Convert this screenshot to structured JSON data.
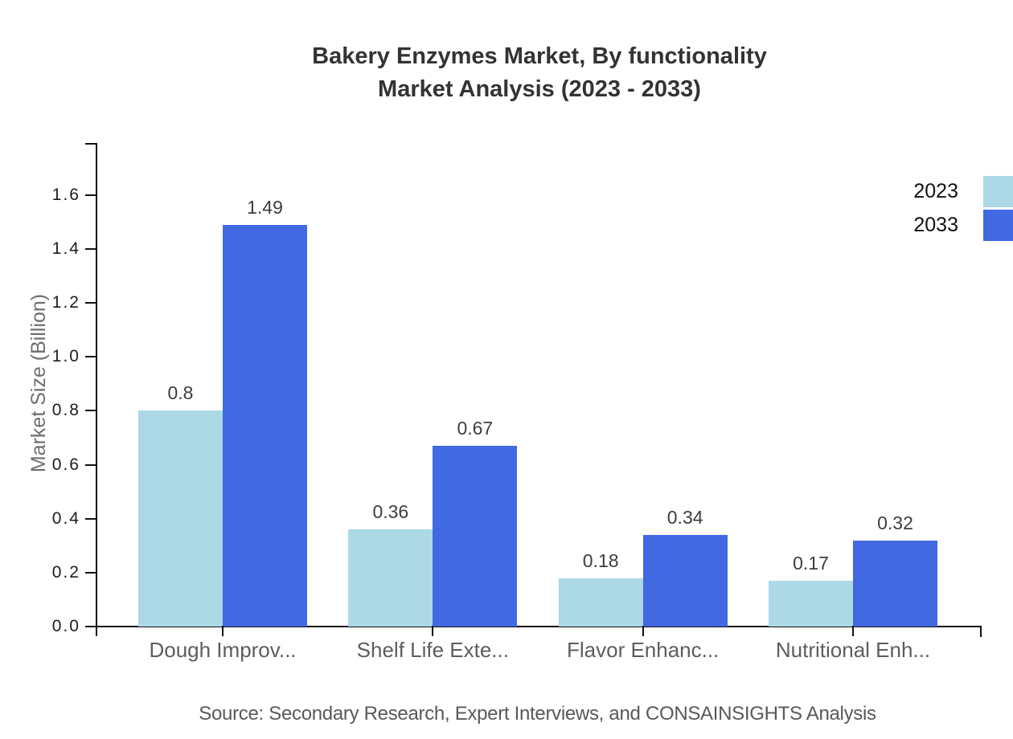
{
  "chart_data": {
    "type": "bar",
    "title_line1": "Bakery Enzymes Market, By functionality",
    "title_line2": "Market Analysis (2023 - 2033)",
    "categories": [
      "Dough Improv...",
      "Shelf Life Exte...",
      "Flavor Enhanc...",
      "Nutritional Enh..."
    ],
    "series": [
      {
        "name": "2023",
        "color": "#ADD8E6",
        "values": [
          0.8,
          0.36,
          0.18,
          0.17
        ]
      },
      {
        "name": "2033",
        "color": "#4169E1",
        "values": [
          1.49,
          0.67,
          0.34,
          0.32
        ]
      }
    ],
    "ylabel": "Market Size (Billion)",
    "ytick_labels": [
      "0.0",
      "0.2",
      "0.4",
      "0.6",
      "0.8",
      "1.0",
      "1.2",
      "1.4",
      "1.6"
    ],
    "ylim": [
      0,
      1.79
    ],
    "grid": false,
    "legend_position": "top-right",
    "axis_color": "#111111",
    "value_label_color": "#3d3d3d"
  },
  "source_note": "Source: Secondary Research, Expert Interviews, and CONSAINSIGHTS Analysis"
}
